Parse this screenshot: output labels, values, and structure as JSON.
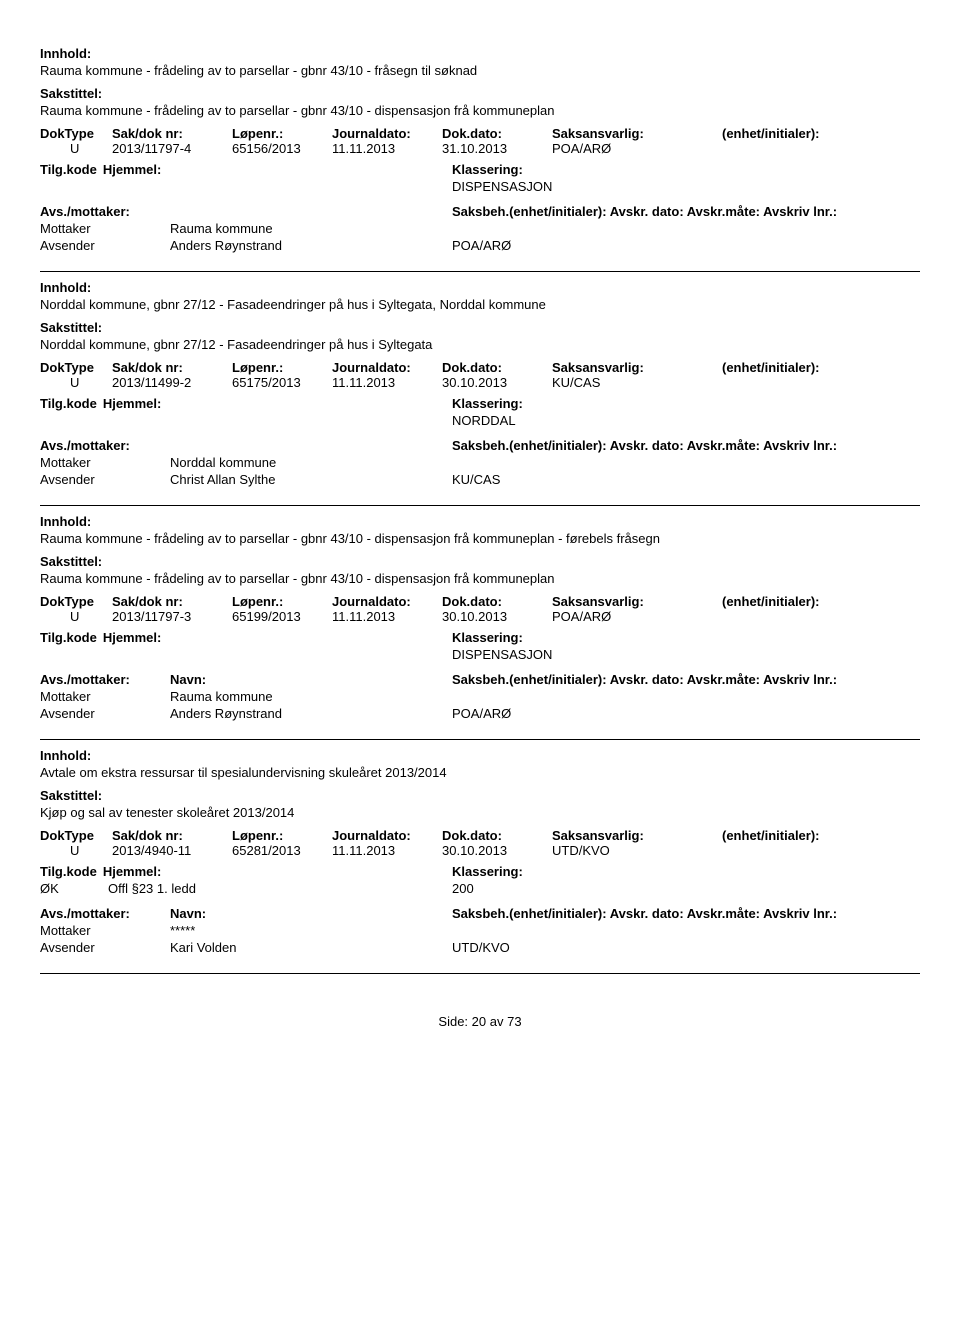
{
  "labels": {
    "innhold": "Innhold:",
    "sakstittel": "Sakstittel:",
    "doktype": "DokType",
    "sakdok": "Sak/dok nr:",
    "lopenr": "Løpenr.:",
    "journaldato": "Journaldato:",
    "dokdato": "Dok.dato:",
    "saksansvarlig": "Saksansvarlig:",
    "enhet": "(enhet/initialer):",
    "tilgkode": "Tilg.kode",
    "hjemmel": "Hjemmel:",
    "klassering": "Klassering:",
    "avsmottaker": "Avs./mottaker:",
    "navn": "Navn:",
    "saksbeh": "Saksbeh.(enhet/initialer): Avskr. dato:  Avskr.måte:  Avskriv lnr.:",
    "mottaker": "Mottaker",
    "avsender": "Avsender"
  },
  "records": [
    {
      "innhold": "Rauma kommune - frådeling av to parsellar - gbnr 43/10 - fråsegn til søknad",
      "sakstittel": "Rauma kommune - frådeling av to parsellar - gbnr 43/10 - dispensasjon frå kommuneplan",
      "doktype": "U",
      "sakdok": "2013/11797-4",
      "lopenr": "65156/2013",
      "journaldato": "11.11.2013",
      "dokdato": "31.10.2013",
      "saksansvarlig": "POA/ARØ",
      "tilgkode": "",
      "hjemmel": "",
      "klassering": "DISPENSASJON",
      "navn_header": false,
      "parties": [
        {
          "role": "Mottaker",
          "name": "Rauma kommune",
          "handler": ""
        },
        {
          "role": "Avsender",
          "name": "Anders Røynstrand",
          "handler": "POA/ARØ"
        }
      ]
    },
    {
      "innhold": "Norddal kommune, gbnr 27/12 - Fasadeendringer på hus i Syltegata, Norddal kommune",
      "sakstittel": "Norddal kommune, gbnr 27/12 - Fasadeendringer på hus i Syltegata",
      "doktype": "U",
      "sakdok": "2013/11499-2",
      "lopenr": "65175/2013",
      "journaldato": "11.11.2013",
      "dokdato": "30.10.2013",
      "saksansvarlig": "KU/CAS",
      "tilgkode": "",
      "hjemmel": "",
      "klassering": "NORDDAL",
      "navn_header": false,
      "parties": [
        {
          "role": "Mottaker",
          "name": "Norddal kommune",
          "handler": ""
        },
        {
          "role": "Avsender",
          "name": "Christ Allan Sylthe",
          "handler": "KU/CAS"
        }
      ]
    },
    {
      "innhold": "Rauma kommune - frådeling av to parsellar - gbnr 43/10 - dispensasjon frå kommuneplan - førebels fråsegn",
      "sakstittel": "Rauma kommune - frådeling av to parsellar - gbnr 43/10 - dispensasjon frå kommuneplan",
      "doktype": "U",
      "sakdok": "2013/11797-3",
      "lopenr": "65199/2013",
      "journaldato": "11.11.2013",
      "dokdato": "30.10.2013",
      "saksansvarlig": "POA/ARØ",
      "tilgkode": "",
      "hjemmel": "",
      "klassering": "DISPENSASJON",
      "navn_header": true,
      "parties": [
        {
          "role": "Mottaker",
          "name": "Rauma kommune",
          "handler": ""
        },
        {
          "role": "Avsender",
          "name": "Anders Røynstrand",
          "handler": "POA/ARØ"
        }
      ]
    },
    {
      "innhold": "Avtale om ekstra ressursar til spesialundervisning skuleåret 2013/2014",
      "sakstittel": "Kjøp og sal av tenester skoleåret 2013/2014",
      "doktype": "U",
      "sakdok": "2013/4940-11",
      "lopenr": "65281/2013",
      "journaldato": "11.11.2013",
      "dokdato": "30.10.2013",
      "saksansvarlig": "UTD/KVO",
      "tilgkode": "ØK",
      "hjemmel": "Offl §23 1. ledd",
      "klassering": "200",
      "navn_header": true,
      "parties": [
        {
          "role": "Mottaker",
          "name": "*****",
          "handler": ""
        },
        {
          "role": "Avsender",
          "name": "Kari Volden",
          "handler": "UTD/KVO"
        }
      ]
    }
  ],
  "footer": {
    "side": "Side:",
    "page": "20",
    "av": "av",
    "total": "73"
  }
}
